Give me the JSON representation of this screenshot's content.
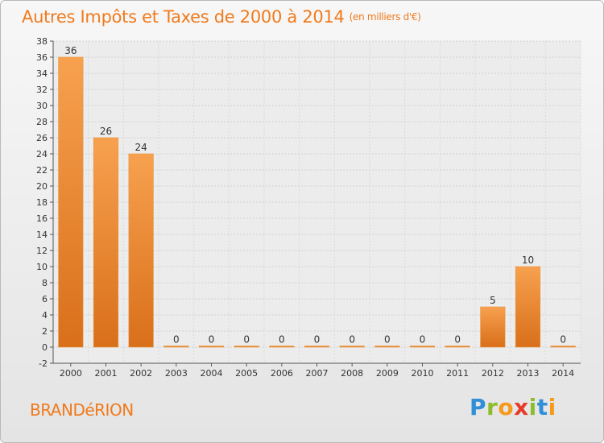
{
  "header": {
    "title": "Autres Impôts et Taxes de 2000 à 2014",
    "unit": "(en milliers d'€)"
  },
  "footer": {
    "commune": "BRANDéRION",
    "logo_letters": [
      "P",
      "r",
      "o",
      "x",
      "i",
      "t",
      "i"
    ],
    "logo_colors": [
      "#2f8fd8",
      "#8dbd2a",
      "#f59a1a",
      "#e63a2a",
      "#8dbd2a",
      "#2f8fd8",
      "#f59a1a"
    ]
  },
  "chart_data": {
    "type": "bar",
    "categories": [
      "2000",
      "2001",
      "2002",
      "2003",
      "2004",
      "2005",
      "2006",
      "2007",
      "2008",
      "2009",
      "2010",
      "2011",
      "2012",
      "2013",
      "2014"
    ],
    "values": [
      36,
      26,
      24,
      0,
      0,
      0,
      0,
      0,
      0,
      0,
      0,
      0,
      5,
      10,
      0
    ],
    "data_labels": [
      "36",
      "26",
      "24",
      "0",
      "0",
      "0",
      "0",
      "0",
      "0",
      "0",
      "0",
      "0",
      "5",
      "10",
      "0"
    ],
    "ylim": [
      -2,
      38
    ],
    "yticks": [
      -2,
      0,
      2,
      4,
      6,
      8,
      10,
      12,
      14,
      16,
      18,
      20,
      22,
      24,
      26,
      28,
      30,
      32,
      34,
      36,
      38
    ],
    "grid": true,
    "xlabel": "",
    "ylabel": "",
    "bar_color": "#f0862a"
  }
}
